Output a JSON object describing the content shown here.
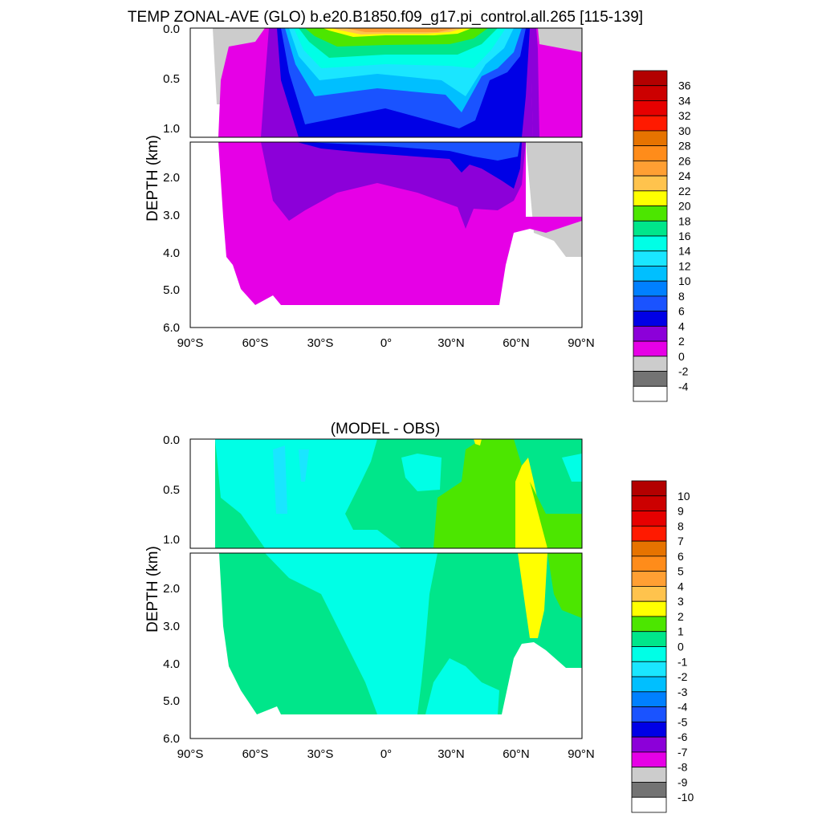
{
  "chart_data": [
    {
      "type": "contour",
      "title": "TEMP ZONAL-AVE (GLO) b.e20.B1850.f09_g17.pi_control.all.265 [115-139]",
      "ylabel": "DEPTH (km)",
      "x_ticks": [
        "90°S",
        "60°S",
        "30°S",
        "0°",
        "30°N",
        "60°N",
        "90°N"
      ],
      "y_ticks_upper": [
        "0.0",
        "0.5",
        "1.0"
      ],
      "y_ticks_lower": [
        "2.0",
        "3.0",
        "4.0",
        "5.0",
        "6.0"
      ],
      "xlim": [
        -90,
        90
      ],
      "ylim_upper": [
        0,
        1.1
      ],
      "ylim_lower": [
        1.3,
        6.0
      ],
      "colorbar": {
        "labels": [
          "36",
          "34",
          "32",
          "30",
          "28",
          "26",
          "24",
          "22",
          "20",
          "18",
          "16",
          "14",
          "12",
          "10",
          "8",
          "6",
          "4",
          "2",
          "0",
          "-2",
          "-4"
        ],
        "colors": [
          "#b30000",
          "#cc0000",
          "#e60000",
          "#ff1a00",
          "#e67300",
          "#ff8c1a",
          "#ff9f33",
          "#ffc34d",
          "#ffff00",
          "#4ce600",
          "#00e68a",
          "#00ffe6",
          "#1ae6ff",
          "#00bfff",
          "#0080ff",
          "#1a53ff",
          "#0000e6",
          "#8c00d9",
          "#e600e6",
          "#cccccc",
          "#737373",
          "#ffffff"
        ]
      }
    },
    {
      "type": "contour",
      "title": "(MODEL - OBS)",
      "ylabel": "DEPTH (km)",
      "x_ticks": [
        "90°S",
        "60°S",
        "30°S",
        "0°",
        "30°N",
        "60°N",
        "90°N"
      ],
      "y_ticks_upper": [
        "0.0",
        "0.5",
        "1.0"
      ],
      "y_ticks_lower": [
        "2.0",
        "3.0",
        "4.0",
        "5.0",
        "6.0"
      ],
      "xlim": [
        -90,
        90
      ],
      "ylim_upper": [
        0,
        1.1
      ],
      "ylim_lower": [
        1.3,
        6.0
      ],
      "colorbar": {
        "labels": [
          "10",
          "9",
          "8",
          "7",
          "6",
          "5",
          "4",
          "3",
          "2",
          "1",
          "0",
          "-1",
          "-2",
          "-3",
          "-4",
          "-5",
          "-6",
          "-7",
          "-8",
          "-9",
          "-10"
        ],
        "colors": [
          "#b30000",
          "#cc0000",
          "#e60000",
          "#ff1a00",
          "#e67300",
          "#ff8c1a",
          "#ff9f33",
          "#ffc34d",
          "#ffff00",
          "#4ce600",
          "#00e68a",
          "#00ffe6",
          "#1ae6ff",
          "#00bfff",
          "#0080ff",
          "#1a53ff",
          "#0000e6",
          "#8c00d9",
          "#e600e6",
          "#cccccc",
          "#737373",
          "#ffffff"
        ]
      }
    }
  ]
}
